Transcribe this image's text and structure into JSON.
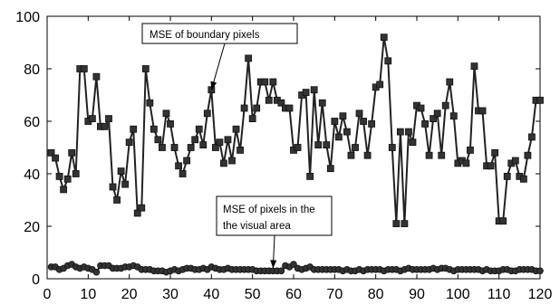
{
  "chart_data": {
    "type": "line",
    "xlim": [
      0,
      120
    ],
    "ylim": [
      0,
      100
    ],
    "x_ticks": [
      0,
      10,
      20,
      30,
      40,
      50,
      60,
      70,
      80,
      90,
      100,
      110,
      120
    ],
    "y_ticks": [
      0,
      20,
      40,
      60,
      80,
      100
    ],
    "grid": false,
    "colors": {
      "line": "#222222",
      "marker": "#333333",
      "axes": "#000000"
    },
    "series": [
      {
        "name": "MSE of boundary pixels",
        "marker": "square",
        "x": [
          1,
          2,
          3,
          4,
          5,
          6,
          7,
          8,
          9,
          10,
          11,
          12,
          13,
          14,
          15,
          16,
          17,
          18,
          19,
          20,
          21,
          22,
          23,
          24,
          25,
          26,
          27,
          28,
          29,
          30,
          31,
          32,
          33,
          34,
          35,
          36,
          37,
          38,
          39,
          40,
          41,
          42,
          43,
          44,
          45,
          46,
          47,
          48,
          49,
          50,
          51,
          52,
          53,
          54,
          55,
          56,
          57,
          58,
          59,
          60,
          61,
          62,
          63,
          64,
          65,
          66,
          67,
          68,
          69,
          70,
          71,
          72,
          73,
          74,
          75,
          76,
          77,
          78,
          79,
          80,
          81,
          82,
          83,
          84,
          85,
          86,
          87,
          88,
          89,
          90,
          91,
          92,
          93,
          94,
          95,
          96,
          97,
          98,
          99,
          100,
          101,
          102,
          103,
          104,
          105,
          106,
          107,
          108,
          109,
          110,
          111,
          112,
          113,
          114,
          115,
          116,
          117,
          118,
          119,
          120
        ],
        "values": [
          48,
          46,
          39,
          34,
          38,
          48,
          40,
          80,
          80,
          60,
          61,
          77,
          58,
          58,
          61,
          35,
          30,
          41,
          36,
          52,
          57,
          25,
          27,
          80,
          67,
          57,
          53,
          50,
          63,
          59,
          50,
          43,
          40,
          45,
          50,
          53,
          57,
          51,
          63,
          72,
          50,
          52,
          44,
          53,
          45,
          57,
          49,
          65,
          84,
          61,
          65,
          75,
          75,
          68,
          75,
          68,
          67,
          65,
          65,
          49,
          50,
          70,
          71,
          39,
          72,
          51,
          67,
          51,
          42,
          60,
          54,
          62,
          56,
          47,
          50,
          63,
          60,
          47,
          59,
          73,
          74,
          92,
          83,
          50,
          21,
          56,
          21,
          56,
          52,
          66,
          65,
          59,
          47,
          61,
          63,
          47,
          66,
          75,
          62,
          44,
          45,
          44,
          49,
          81,
          64,
          64,
          43,
          43,
          48,
          22,
          22,
          39,
          44,
          45,
          39,
          38,
          47,
          54,
          68,
          68
        ]
      },
      {
        "name": "MSE of pixels in the visual area",
        "marker": "circle",
        "x": [
          1,
          2,
          3,
          4,
          5,
          6,
          7,
          8,
          9,
          10,
          11,
          12,
          13,
          14,
          15,
          16,
          17,
          18,
          19,
          20,
          21,
          22,
          23,
          24,
          25,
          26,
          27,
          28,
          29,
          30,
          31,
          32,
          33,
          34,
          35,
          36,
          37,
          38,
          39,
          40,
          41,
          42,
          43,
          44,
          45,
          46,
          47,
          48,
          49,
          50,
          51,
          52,
          53,
          54,
          55,
          56,
          57,
          58,
          59,
          60,
          61,
          62,
          63,
          64,
          65,
          66,
          67,
          68,
          69,
          70,
          71,
          72,
          73,
          74,
          75,
          76,
          77,
          78,
          79,
          80,
          81,
          82,
          83,
          84,
          85,
          86,
          87,
          88,
          89,
          90,
          91,
          92,
          93,
          94,
          95,
          96,
          97,
          98,
          99,
          100,
          101,
          102,
          103,
          104,
          105,
          106,
          107,
          108,
          109,
          110,
          111,
          112,
          113,
          114,
          115,
          116,
          117,
          118,
          119,
          120
        ],
        "values": [
          4.5,
          4.5,
          3.5,
          4,
          5,
          5.5,
          4.5,
          4,
          4.5,
          4,
          3.5,
          2.5,
          5,
          5,
          5,
          4,
          4,
          4,
          4.5,
          4.5,
          5,
          4.5,
          3.5,
          3.5,
          3.5,
          3,
          3,
          3,
          2.5,
          3,
          3.5,
          3,
          3.5,
          4,
          4,
          3.5,
          3.5,
          4,
          3.5,
          4.5,
          4,
          3.5,
          3.5,
          4,
          3.5,
          3.5,
          3.5,
          3.5,
          3.5,
          3.5,
          3,
          3,
          3,
          3,
          3,
          3,
          3,
          5,
          4.5,
          5.5,
          4,
          3.5,
          4,
          4.5,
          3.5,
          3.5,
          3.5,
          3.5,
          3.5,
          3.5,
          3.5,
          3,
          3.5,
          3,
          3,
          3.5,
          3,
          3.5,
          3.5,
          3.5,
          3.5,
          3,
          3.5,
          3.5,
          3.5,
          3,
          3.5,
          4,
          3.5,
          3.5,
          3.5,
          3.5,
          3.5,
          4,
          3.5,
          4,
          4,
          3.5,
          3,
          3.5,
          3.5,
          3.5,
          3.5,
          3.5,
          3.5,
          3,
          3.5,
          3,
          3,
          3,
          3.5,
          3.5,
          3,
          3,
          3.5,
          3.5,
          3.5,
          3.5,
          3,
          3
        ]
      }
    ],
    "annotations": [
      {
        "text": "MSE of boundary pixels",
        "point_to": [
          40,
          72
        ]
      },
      {
        "text": "MSE of pixels in the visual area",
        "lines": [
          "MSE of pixels in the",
          "the visual area"
        ],
        "point_to": [
          55,
          4
        ]
      }
    ]
  }
}
